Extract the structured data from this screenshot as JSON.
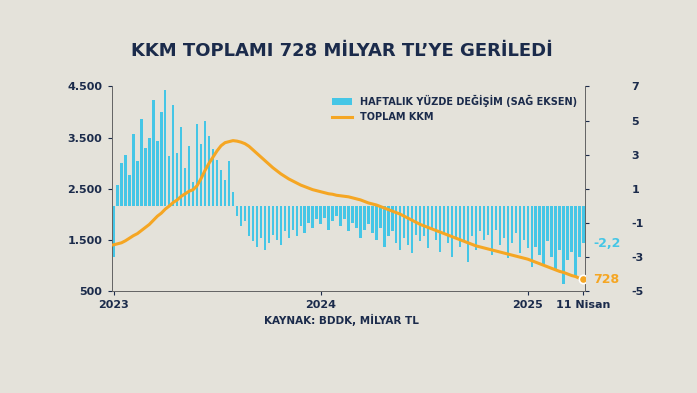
{
  "chart_data": {
    "type": "combo",
    "title": "KKM TOPLAMI 728 MİLYAR TL’YE GERİLEDİ",
    "source": "KAYNAK: BDDK, MİLYAR TL",
    "categories": [
      "2023",
      null,
      null,
      null,
      null,
      null,
      null,
      null,
      null,
      null,
      null,
      null,
      null,
      null,
      null,
      null,
      null,
      null,
      null,
      null,
      null,
      null,
      null,
      null,
      null,
      null,
      null,
      null,
      null,
      null,
      null,
      null,
      null,
      null,
      null,
      null,
      null,
      null,
      null,
      null,
      null,
      null,
      null,
      null,
      null,
      null,
      null,
      null,
      null,
      null,
      null,
      null,
      "2024",
      null,
      null,
      null,
      null,
      null,
      null,
      null,
      null,
      null,
      null,
      null,
      null,
      null,
      null,
      null,
      null,
      null,
      null,
      null,
      null,
      null,
      null,
      null,
      null,
      null,
      null,
      null,
      null,
      null,
      null,
      null,
      null,
      null,
      null,
      null,
      null,
      null,
      null,
      null,
      null,
      null,
      null,
      null,
      null,
      null,
      null,
      null,
      null,
      null,
      null,
      null,
      "2025",
      null,
      null,
      null,
      null,
      null,
      null,
      null,
      null,
      null,
      null,
      null,
      null,
      null,
      "11 Nisan"
    ],
    "series": [
      {
        "name": "HAFTALIK YÜZDE DEĞİŞİM (SAĞ EKSEN)",
        "type": "bar",
        "axis": "y2",
        "color": "#45c6e6",
        "values": [
          -3.0,
          1.2,
          2.5,
          3.0,
          1.8,
          4.2,
          2.6,
          5.1,
          3.4,
          4.0,
          6.2,
          3.8,
          5.5,
          6.8,
          2.9,
          5.9,
          3.1,
          4.6,
          2.2,
          3.5,
          1.4,
          4.8,
          3.6,
          5.0,
          4.1,
          3.3,
          2.7,
          2.1,
          1.5,
          2.6,
          0.8,
          -0.6,
          -1.2,
          -0.9,
          -1.8,
          -2.1,
          -2.4,
          -1.9,
          -2.6,
          -2.2,
          -1.7,
          -2.0,
          -2.3,
          -1.5,
          -1.9,
          -1.4,
          -1.8,
          -1.2,
          -1.6,
          -1.0,
          -1.3,
          -0.8,
          -1.1,
          -0.7,
          -1.4,
          -0.9,
          -0.6,
          -1.2,
          -0.8,
          -1.5,
          -1.0,
          -1.3,
          -1.9,
          -1.4,
          -1.1,
          -1.6,
          -2.0,
          -1.3,
          -2.4,
          -1.8,
          -1.5,
          -2.2,
          -2.6,
          -1.9,
          -2.3,
          -2.8,
          -1.7,
          -2.1,
          -1.8,
          -2.5,
          -1.4,
          -2.0,
          -2.7,
          -1.6,
          -2.2,
          -3.0,
          -1.9,
          -2.4,
          -2.1,
          -3.3,
          -1.8,
          -2.6,
          -1.5,
          -2.0,
          -1.7,
          -2.9,
          -1.4,
          -2.3,
          -1.9,
          -3.1,
          -2.2,
          -1.6,
          -2.8,
          -2.0,
          -2.5,
          -3.6,
          -2.4,
          -2.9,
          -3.4,
          -2.1,
          -3.0,
          -3.8,
          -2.6,
          -4.6,
          -3.2,
          -2.7,
          -4.2,
          -3.0,
          -2.2
        ]
      },
      {
        "name": "TOPLAM KKM",
        "type": "line",
        "color": "#f5a623",
        "values": [
          1400,
          1420,
          1440,
          1480,
          1530,
          1580,
          1620,
          1680,
          1740,
          1800,
          1880,
          1960,
          2020,
          2100,
          2160,
          2230,
          2280,
          2350,
          2400,
          2450,
          2480,
          2560,
          2700,
          2860,
          3000,
          3120,
          3240,
          3340,
          3400,
          3420,
          3440,
          3430,
          3410,
          3380,
          3330,
          3260,
          3190,
          3120,
          3050,
          2980,
          2910,
          2850,
          2790,
          2740,
          2690,
          2650,
          2610,
          2570,
          2540,
          2510,
          2480,
          2460,
          2440,
          2420,
          2400,
          2390,
          2370,
          2360,
          2350,
          2340,
          2320,
          2300,
          2280,
          2250,
          2220,
          2200,
          2180,
          2150,
          2120,
          2090,
          2060,
          2030,
          2000,
          1960,
          1920,
          1880,
          1840,
          1800,
          1770,
          1740,
          1710,
          1680,
          1650,
          1620,
          1590,
          1560,
          1530,
          1500,
          1470,
          1440,
          1410,
          1380,
          1360,
          1340,
          1320,
          1300,
          1280,
          1260,
          1240,
          1220,
          1200,
          1180,
          1160,
          1140,
          1120,
          1090,
          1060,
          1030,
          1000,
          970,
          940,
          910,
          880,
          860,
          830,
          800,
          780,
          744,
          728
        ]
      }
    ],
    "ylim": [
      500,
      4500
    ],
    "yticks": [
      500,
      {
        "value": 1500,
        "label": "1.500"
      },
      {
        "value": 2500,
        "label": "2.500"
      },
      {
        "value": 3500,
        "label": "3.500"
      },
      {
        "value": 4500,
        "label": "4.500"
      }
    ],
    "y2lim": [
      -5,
      7
    ],
    "y2ticks": [
      -5,
      -3,
      -1,
      1,
      3,
      5,
      7
    ],
    "legend": "upper right",
    "grid": false,
    "annotations": [
      {
        "text": "-2,2",
        "series": "HAFTALIK YÜZDE DEĞİŞİM (SAĞ EKSEN)",
        "value": -2.2
      },
      {
        "text": "728",
        "series": "TOPLAM KKM",
        "value": 728
      }
    ]
  }
}
